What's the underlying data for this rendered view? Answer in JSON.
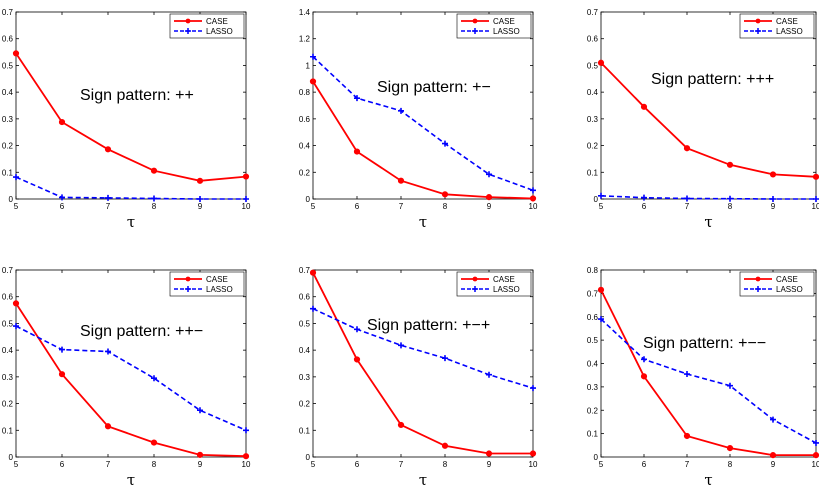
{
  "colors": {
    "case": "#ff0000",
    "lasso": "#0000ff"
  },
  "chart_data": [
    {
      "type": "line",
      "annotation": "Sign pattern: ++",
      "xlabel": "τ",
      "x": [
        5,
        6,
        7,
        8,
        9,
        10
      ],
      "xlim": [
        5,
        10
      ],
      "ylim": [
        0,
        0.7
      ],
      "yticks": [
        0,
        0.1,
        0.2,
        0.3,
        0.4,
        0.5,
        0.6,
        0.7
      ],
      "ytick_labels": [
        "0",
        "0.1",
        "0.2",
        "0.3",
        "0.4",
        "0.5",
        "0.6",
        "0.7"
      ],
      "legend": "top-right",
      "series": [
        {
          "name": "CASE",
          "values": [
            0.545,
            0.288,
            0.186,
            0.106,
            0.068,
            0.084
          ]
        },
        {
          "name": "LASSO",
          "values": [
            0.082,
            0.006,
            0.004,
            0.002,
            0.0,
            0.0
          ]
        }
      ]
    },
    {
      "type": "line",
      "annotation": "Sign pattern: +−",
      "xlabel": "τ",
      "x": [
        5,
        6,
        7,
        8,
        9,
        10
      ],
      "xlim": [
        5,
        10
      ],
      "ylim": [
        0,
        1.4
      ],
      "yticks": [
        0,
        0.2,
        0.4,
        0.6,
        0.8,
        1,
        1.2,
        1.4
      ],
      "ytick_labels": [
        "0",
        "0.2",
        "0.4",
        "0.6",
        "0.8",
        "1",
        "1.2",
        "1.4"
      ],
      "legend": "top-right",
      "series": [
        {
          "name": "CASE",
          "values": [
            0.88,
            0.355,
            0.137,
            0.035,
            0.014,
            0.004
          ]
        },
        {
          "name": "LASSO",
          "values": [
            1.065,
            0.755,
            0.66,
            0.415,
            0.185,
            0.065
          ]
        }
      ]
    },
    {
      "type": "line",
      "annotation": "Sign pattern: +++",
      "xlabel": "τ",
      "x": [
        5,
        6,
        7,
        8,
        9,
        10
      ],
      "xlim": [
        5,
        10
      ],
      "ylim": [
        0,
        0.7
      ],
      "yticks": [
        0,
        0.1,
        0.2,
        0.3,
        0.4,
        0.5,
        0.6,
        0.7
      ],
      "ytick_labels": [
        "0",
        "0.1",
        "0.2",
        "0.3",
        "0.4",
        "0.5",
        "0.6",
        "0.7"
      ],
      "legend": "top-right",
      "series": [
        {
          "name": "CASE",
          "values": [
            0.51,
            0.345,
            0.19,
            0.128,
            0.092,
            0.083
          ]
        },
        {
          "name": "LASSO",
          "values": [
            0.012,
            0.005,
            0.002,
            0.001,
            0.0,
            0.0
          ]
        }
      ]
    },
    {
      "type": "line",
      "annotation": "Sign pattern: ++−",
      "xlabel": "τ",
      "x": [
        5,
        6,
        7,
        8,
        9,
        10
      ],
      "xlim": [
        5,
        10
      ],
      "ylim": [
        0,
        0.7
      ],
      "yticks": [
        0,
        0.1,
        0.2,
        0.3,
        0.4,
        0.5,
        0.6,
        0.7
      ],
      "ytick_labels": [
        "0",
        "0.1",
        "0.2",
        "0.3",
        "0.4",
        "0.5",
        "0.6",
        "0.7"
      ],
      "legend": "top-right",
      "series": [
        {
          "name": "CASE",
          "values": [
            0.575,
            0.31,
            0.115,
            0.054,
            0.008,
            0.003
          ]
        },
        {
          "name": "LASSO",
          "values": [
            0.49,
            0.402,
            0.395,
            0.295,
            0.175,
            0.1
          ]
        }
      ]
    },
    {
      "type": "line",
      "annotation": "Sign pattern: +−+",
      "xlabel": "τ",
      "x": [
        5,
        6,
        7,
        8,
        9,
        10
      ],
      "xlim": [
        5,
        10
      ],
      "ylim": [
        0,
        0.7
      ],
      "yticks": [
        0,
        0.1,
        0.2,
        0.3,
        0.4,
        0.5,
        0.6,
        0.7
      ],
      "ytick_labels": [
        "0",
        "0.1",
        "0.2",
        "0.3",
        "0.4",
        "0.5",
        "0.6",
        "0.7"
      ],
      "legend": "top-right",
      "series": [
        {
          "name": "CASE",
          "values": [
            0.69,
            0.365,
            0.12,
            0.042,
            0.013,
            0.013
          ]
        },
        {
          "name": "LASSO",
          "values": [
            0.555,
            0.478,
            0.418,
            0.37,
            0.308,
            0.258
          ]
        }
      ]
    },
    {
      "type": "line",
      "annotation": "Sign pattern: +−−",
      "xlabel": "τ",
      "x": [
        5,
        6,
        7,
        8,
        9,
        10
      ],
      "xlim": [
        5,
        10
      ],
      "ylim": [
        0,
        0.8
      ],
      "yticks": [
        0,
        0.1,
        0.2,
        0.3,
        0.4,
        0.5,
        0.6,
        0.7,
        0.8
      ],
      "ytick_labels": [
        "0",
        "0.1",
        "0.2",
        "0.3",
        "0.4",
        "0.5",
        "0.6",
        "0.7",
        "0.8"
      ],
      "legend": "top-right",
      "series": [
        {
          "name": "CASE",
          "values": [
            0.715,
            0.345,
            0.09,
            0.038,
            0.008,
            0.008
          ]
        },
        {
          "name": "LASSO",
          "values": [
            0.59,
            0.418,
            0.355,
            0.305,
            0.16,
            0.06
          ]
        }
      ]
    }
  ]
}
